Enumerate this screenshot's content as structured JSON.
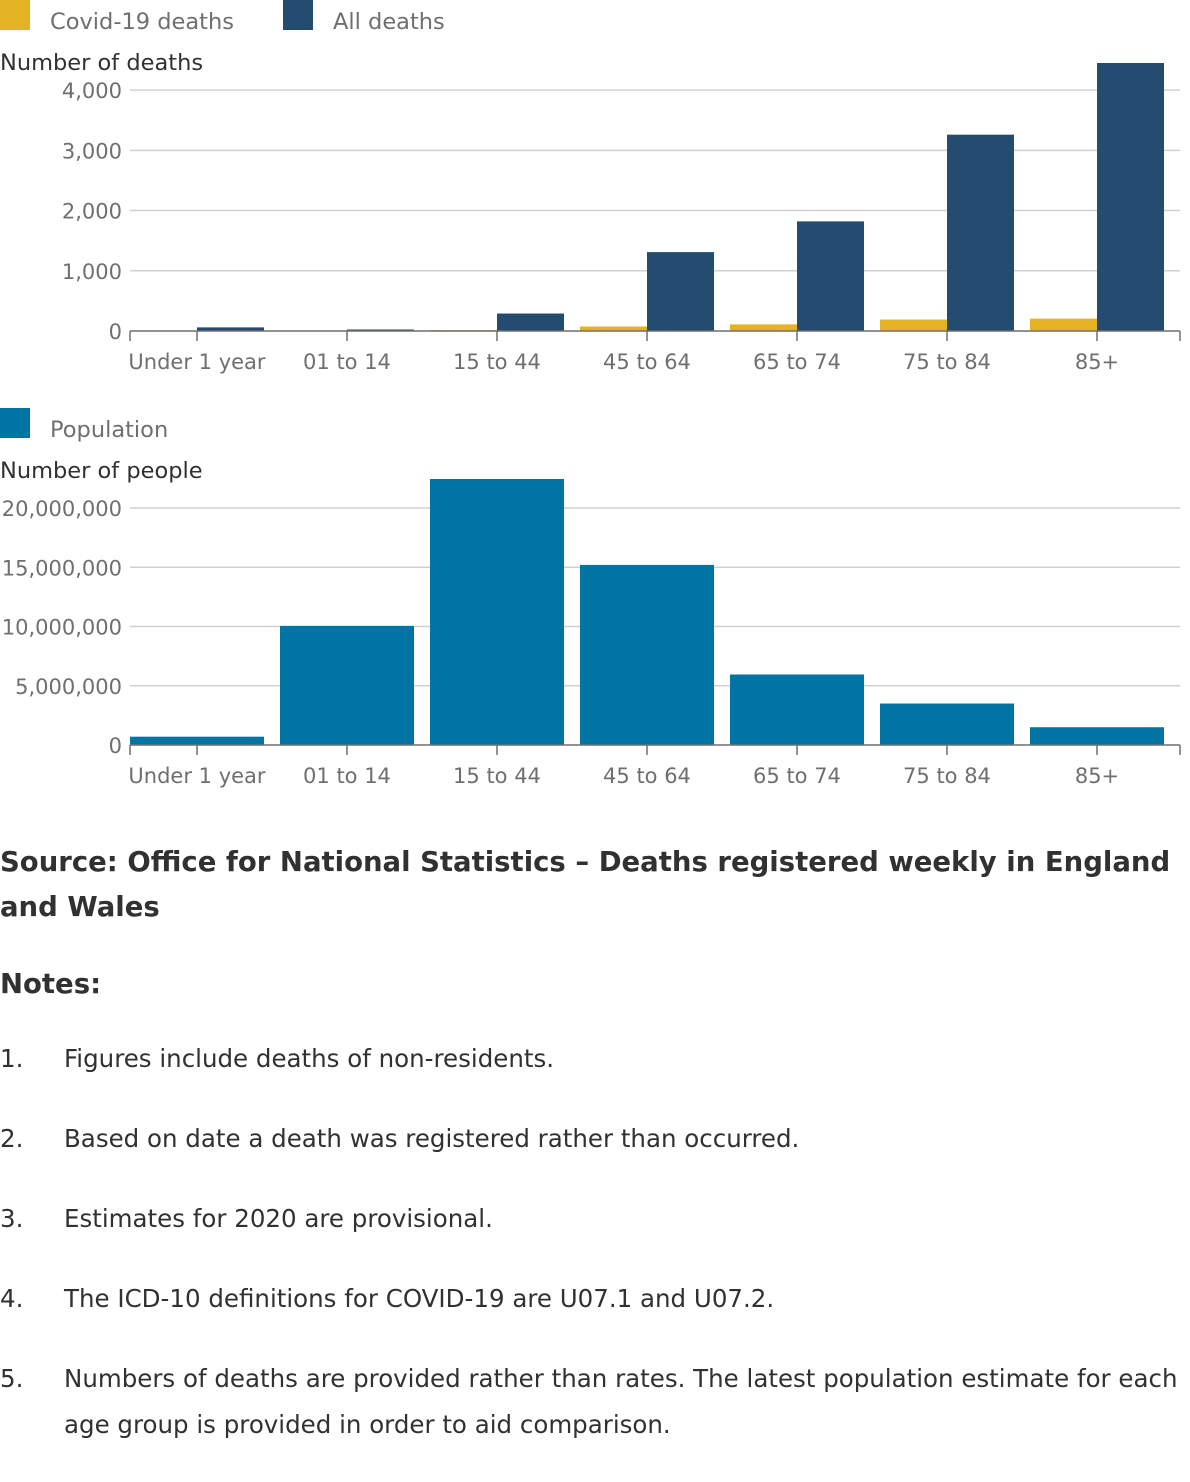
{
  "charts": {
    "deaths": {
      "legend": [
        "Covid-19 deaths",
        "All deaths"
      ],
      "ylabel": "Number of deaths"
    },
    "population": {
      "legend": [
        "Population"
      ],
      "ylabel": "Number of people"
    }
  },
  "chart_data": [
    {
      "type": "bar",
      "categories": [
        "Under 1 year",
        "01 to 14",
        "15 to 44",
        "45 to 64",
        "65 to 74",
        "75 to 84",
        "85+"
      ],
      "series": [
        {
          "name": "Covid-19 deaths",
          "color": "#e3b324",
          "values": [
            0,
            0,
            15,
            75,
            110,
            190,
            205
          ]
        },
        {
          "name": "All deaths",
          "color": "#234c70",
          "values": [
            60,
            25,
            290,
            1310,
            1820,
            3260,
            4450
          ]
        }
      ],
      "ylabel": "Number of deaths",
      "yticks": [
        0,
        1000,
        2000,
        3000,
        4000
      ],
      "ylim": [
        0,
        4450
      ],
      "grid": true,
      "legend_position": "top-left"
    },
    {
      "type": "bar",
      "categories": [
        "Under 1 year",
        "01 to 14",
        "15 to 44",
        "45 to 64",
        "65 to 74",
        "75 to 84",
        "85+"
      ],
      "series": [
        {
          "name": "Population",
          "color": "#0075a3",
          "values": [
            700000,
            10050000,
            22450000,
            15200000,
            5950000,
            3500000,
            1500000
          ]
        }
      ],
      "ylabel": "Number of people",
      "yticks": [
        0,
        5000000,
        10000000,
        15000000,
        20000000
      ],
      "ylim": [
        0,
        22450000
      ],
      "grid": true,
      "legend_position": "top-left"
    }
  ],
  "source": "Source: Office for National Statistics – Deaths registered weekly in England and Wales",
  "notes": {
    "heading": "Notes:",
    "items": [
      {
        "num": "1.",
        "text": "Figures include deaths of non-residents."
      },
      {
        "num": "2.",
        "text": "Based on date a death was registered rather than occurred."
      },
      {
        "num": "3.",
        "text": "Estimates for 2020 are provisional."
      },
      {
        "num": "4.",
        "text": "The ICD-10 definitions for COVID-19 are U07.1 and U07.2."
      },
      {
        "num": "5.",
        "text": "Numbers of deaths are provided rather than rates. The latest population estimate for each age group is provided in order to aid comparison."
      }
    ]
  }
}
